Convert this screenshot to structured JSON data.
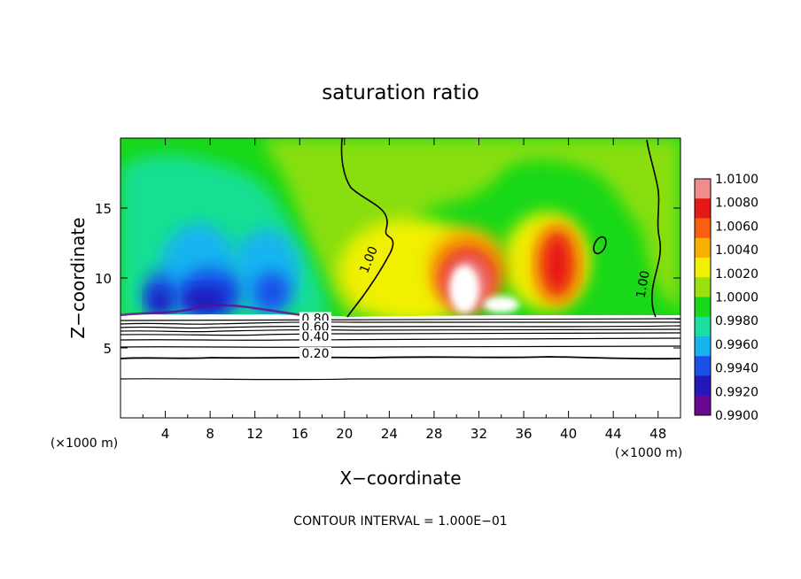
{
  "chart_data": {
    "type": "heatmap",
    "title": "saturation ratio",
    "xlabel": "X−coordinate",
    "ylabel": "Z−coordinate",
    "x_unit_label": "(×1000 m)",
    "z_unit_label": "(×1000 m)",
    "xlim": [
      0,
      50
    ],
    "ylim": [
      0,
      20
    ],
    "x_ticks": [
      4,
      8,
      12,
      16,
      20,
      24,
      28,
      32,
      36,
      40,
      44,
      48
    ],
    "y_ticks": [
      5,
      10,
      15
    ],
    "footer": "CONTOUR INTERVAL = 1.000E−01",
    "colorbar": {
      "levels": [
        "1.0100",
        "1.0080",
        "1.0060",
        "1.0040",
        "1.0020",
        "1.0000",
        "0.9980",
        "0.9960",
        "0.9940",
        "0.9920",
        "0.9900"
      ],
      "colors": [
        "#f08c8c",
        "#e81818",
        "#f86010",
        "#f8b000",
        "#f0f000",
        "#9ce010",
        "#18d818",
        "#18e0a0",
        "#18b4f0",
        "#1850e8",
        "#2418b8",
        "#680890"
      ]
    },
    "contour_labels": [
      {
        "text": "1.00",
        "x": 22.5,
        "z": 11.2
      },
      {
        "text": "1.00",
        "x": 47.0,
        "z": 9.5
      },
      {
        "text": "0.80",
        "x": 17.4,
        "z": 6.8
      },
      {
        "text": "0.60",
        "x": 17.4,
        "z": 6.2
      },
      {
        "text": "0.40",
        "x": 17.4,
        "z": 5.5
      },
      {
        "text": "0.20",
        "x": 17.4,
        "z": 4.3
      }
    ],
    "blobs": [
      {
        "x": 7,
        "z": 10.5,
        "rx": 3.5,
        "rz": 3.4,
        "color": "#18b4f0"
      },
      {
        "x": 13,
        "z": 10.5,
        "rx": 3.0,
        "rz": 3.0,
        "color": "#18b4f0"
      },
      {
        "x": 8,
        "z": 9.0,
        "rx": 2.8,
        "rz": 1.7,
        "color": "#1850e8"
      },
      {
        "x": 3.5,
        "z": 8.8,
        "rx": 1.5,
        "rz": 1.6,
        "color": "#1850e8"
      },
      {
        "x": 13.5,
        "z": 9.0,
        "rx": 1.6,
        "rz": 1.4,
        "color": "#1850e8"
      },
      {
        "x": 7.5,
        "z": 8.4,
        "rx": 2.2,
        "rz": 0.9,
        "color": "#2418b8"
      },
      {
        "x": 3.5,
        "z": 8.3,
        "rx": 1.0,
        "rz": 0.8,
        "color": "#2418b8"
      },
      {
        "x": 26,
        "z": 10.5,
        "rx": 6.5,
        "rz": 3.8,
        "color": "#f0f000"
      },
      {
        "x": 38,
        "z": 11.2,
        "rx": 3.8,
        "rz": 3.5,
        "color": "#f0f000"
      },
      {
        "x": 31,
        "z": 10.8,
        "rx": 3.5,
        "rz": 2.8,
        "color": "#f8b000"
      },
      {
        "x": 39,
        "z": 11.0,
        "rx": 2.4,
        "rz": 3.0,
        "color": "#f8b000"
      },
      {
        "x": 31,
        "z": 10.0,
        "rx": 2.6,
        "rz": 2.2,
        "color": "#e81818"
      },
      {
        "x": 39,
        "z": 11.0,
        "rx": 1.5,
        "rz": 2.4,
        "color": "#e81818"
      },
      {
        "x": 31,
        "z": 9.6,
        "rx": 2.0,
        "rz": 2.0,
        "color": "#f08c8c"
      },
      {
        "x": 30.7,
        "z": 9.2,
        "rx": 1.3,
        "rz": 1.7,
        "color": "#ffffff"
      },
      {
        "x": 34,
        "z": 8.1,
        "rx": 1.6,
        "rz": 0.6,
        "color": "#ffffff"
      }
    ]
  }
}
